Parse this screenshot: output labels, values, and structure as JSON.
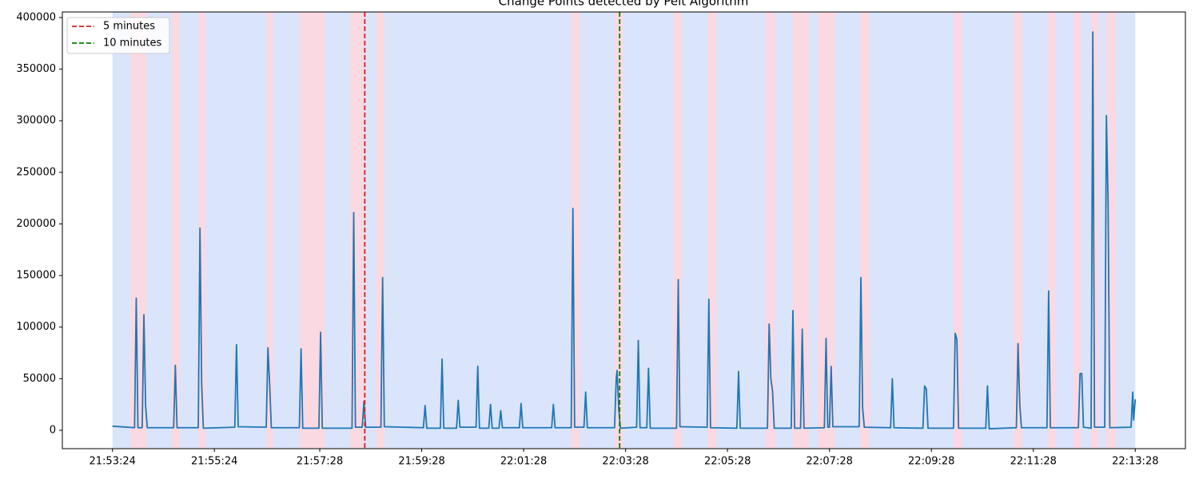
{
  "chart_data": {
    "type": "line",
    "title": "Change Points detected by Pelt Algorithm",
    "color": "#1f77b4",
    "x": [
      "21:53:24",
      "21:53:50",
      "21:53:52",
      "21:53:54",
      "21:53:59",
      "21:54:01",
      "21:54:03",
      "21:54:05",
      "21:54:36",
      "21:54:38",
      "21:54:40",
      "21:55:05",
      "21:55:07",
      "21:55:09",
      "21:55:11",
      "21:55:48",
      "21:55:50",
      "21:55:52",
      "21:56:25",
      "21:56:27",
      "21:56:29",
      "21:56:31",
      "21:57:04",
      "21:57:06",
      "21:57:08",
      "21:57:27",
      "21:57:29",
      "21:57:31",
      "21:58:06",
      "21:58:08",
      "21:58:10",
      "21:58:18",
      "21:58:20",
      "21:58:22",
      "21:58:40",
      "21:58:42",
      "21:58:44",
      "21:59:30",
      "21:59:32",
      "21:59:34",
      "21:59:50",
      "21:59:52",
      "21:59:54",
      "22:00:09",
      "22:00:11",
      "22:00:13",
      "22:00:32",
      "22:00:34",
      "22:00:36",
      "22:00:47",
      "22:00:49",
      "22:00:51",
      "22:00:59",
      "22:01:01",
      "22:01:03",
      "22:01:23",
      "22:01:25",
      "22:01:27",
      "22:02:01",
      "22:02:03",
      "22:02:05",
      "22:02:24",
      "22:02:26",
      "22:02:28",
      "22:02:39",
      "22:02:41",
      "22:02:43",
      "22:03:15",
      "22:03:17",
      "22:03:18",
      "22:03:20",
      "22:03:22",
      "22:03:41",
      "22:03:43",
      "22:03:45",
      "22:03:53",
      "22:03:55",
      "22:03:57",
      "22:04:28",
      "22:04:30",
      "22:04:32",
      "22:05:04",
      "22:05:06",
      "22:05:08",
      "22:05:39",
      "22:05:41",
      "22:05:43",
      "22:06:15",
      "22:06:17",
      "22:06:19",
      "22:06:21",
      "22:06:23",
      "22:06:43",
      "22:06:45",
      "22:06:47",
      "22:06:54",
      "22:06:56",
      "22:06:58",
      "22:07:22",
      "22:07:24",
      "22:07:26",
      "22:07:28",
      "22:07:30",
      "22:07:32",
      "22:08:03",
      "22:08:05",
      "22:08:07",
      "22:08:09",
      "22:08:40",
      "22:08:42",
      "22:08:44",
      "22:09:18",
      "22:09:20",
      "22:09:22",
      "22:09:24",
      "22:09:54",
      "22:09:56",
      "22:09:58",
      "22:10:00",
      "22:10:32",
      "22:10:34",
      "22:10:36",
      "22:11:08",
      "22:11:10",
      "22:11:12",
      "22:11:14",
      "22:11:44",
      "22:11:46",
      "22:11:48",
      "22:12:21",
      "22:12:23",
      "22:12:25",
      "22:12:27",
      "22:12:36",
      "22:12:38",
      "22:12:40",
      "22:12:52",
      "22:12:54",
      "22:12:56",
      "22:12:58",
      "22:13:23",
      "22:13:25",
      "22:13:26",
      "22:13:28"
    ],
    "values": [
      4000,
      2500,
      128000,
      2500,
      2500,
      112000,
      24000,
      2500,
      2500,
      63000,
      2500,
      2500,
      196000,
      45000,
      2000,
      3000,
      83000,
      3500,
      3000,
      80000,
      45000,
      2500,
      2500,
      79000,
      2000,
      2000,
      95000,
      2000,
      2000,
      211000,
      3000,
      3000,
      28000,
      3000,
      3000,
      148000,
      3500,
      2500,
      24000,
      2000,
      2000,
      69000,
      2000,
      2000,
      29000,
      3000,
      3000,
      62000,
      2000,
      2000,
      25000,
      2000,
      2000,
      19000,
      2500,
      2500,
      26000,
      2500,
      2500,
      25000,
      2500,
      2500,
      215000,
      3000,
      3000,
      37000,
      2500,
      2500,
      50000,
      58000,
      20000,
      2000,
      3000,
      87000,
      2500,
      2500,
      60000,
      2000,
      2000,
      146000,
      3500,
      3000,
      127000,
      2500,
      2000,
      57000,
      2000,
      2000,
      103000,
      50000,
      38000,
      2000,
      2000,
      116000,
      2000,
      2000,
      98000,
      2000,
      2500,
      89000,
      3000,
      3000,
      62000,
      3500,
      3500,
      148000,
      22000,
      3000,
      2500,
      50000,
      2500,
      2000,
      43000,
      40000,
      2000,
      2000,
      94000,
      88000,
      2000,
      2000,
      43000,
      1500,
      2500,
      84000,
      25000,
      2500,
      2500,
      135000,
      2500,
      2500,
      55000,
      55000,
      3000,
      2000,
      386000,
      3000,
      3000,
      305000,
      220000,
      2500,
      3000,
      37000,
      10000,
      30000
    ],
    "xlim": [
      "21:52:25",
      "22:14:27"
    ],
    "xticks": [
      "21:53:24",
      "21:55:24",
      "21:57:28",
      "21:59:28",
      "22:01:28",
      "22:03:28",
      "22:05:28",
      "22:07:28",
      "22:09:28",
      "22:11:28",
      "22:13:28"
    ],
    "ylim": [
      -17800,
      405400
    ],
    "yticks": [
      0,
      50000,
      100000,
      150000,
      200000,
      250000,
      300000,
      350000,
      400000
    ],
    "background_span": [
      "21:53:24",
      "22:13:28"
    ],
    "background_color": "#dae4fb",
    "change_spans": [
      [
        "21:53:45",
        "21:54:04"
      ],
      [
        "21:54:34",
        "21:54:43"
      ],
      [
        "21:55:05",
        "21:55:13"
      ],
      [
        "21:56:25",
        "21:56:33"
      ],
      [
        "21:57:04",
        "21:57:34"
      ],
      [
        "21:58:04",
        "21:58:21"
      ],
      [
        "21:58:34",
        "21:58:44"
      ],
      [
        "22:02:24",
        "22:02:34"
      ],
      [
        "22:03:15",
        "22:03:25"
      ],
      [
        "22:04:24",
        "22:04:34"
      ],
      [
        "22:05:05",
        "22:05:15"
      ],
      [
        "22:06:13",
        "22:06:24"
      ],
      [
        "22:06:44",
        "22:07:04"
      ],
      [
        "22:07:14",
        "22:07:34"
      ],
      [
        "22:08:04",
        "22:08:15"
      ],
      [
        "22:09:54",
        "22:10:04"
      ],
      [
        "22:11:05",
        "22:11:15"
      ],
      [
        "22:11:45",
        "22:11:54"
      ],
      [
        "22:12:15",
        "22:12:24"
      ],
      [
        "22:12:36",
        "22:12:45"
      ],
      [
        "22:12:54",
        "22:13:05"
      ]
    ],
    "change_color": "#fbd9e2",
    "vlines": [
      {
        "name": "5 minutes",
        "x": "21:58:21",
        "color": "#d62020"
      },
      {
        "name": "10 minutes",
        "x": "22:03:21",
        "color": "#008000"
      }
    ],
    "legend": "upper left"
  }
}
